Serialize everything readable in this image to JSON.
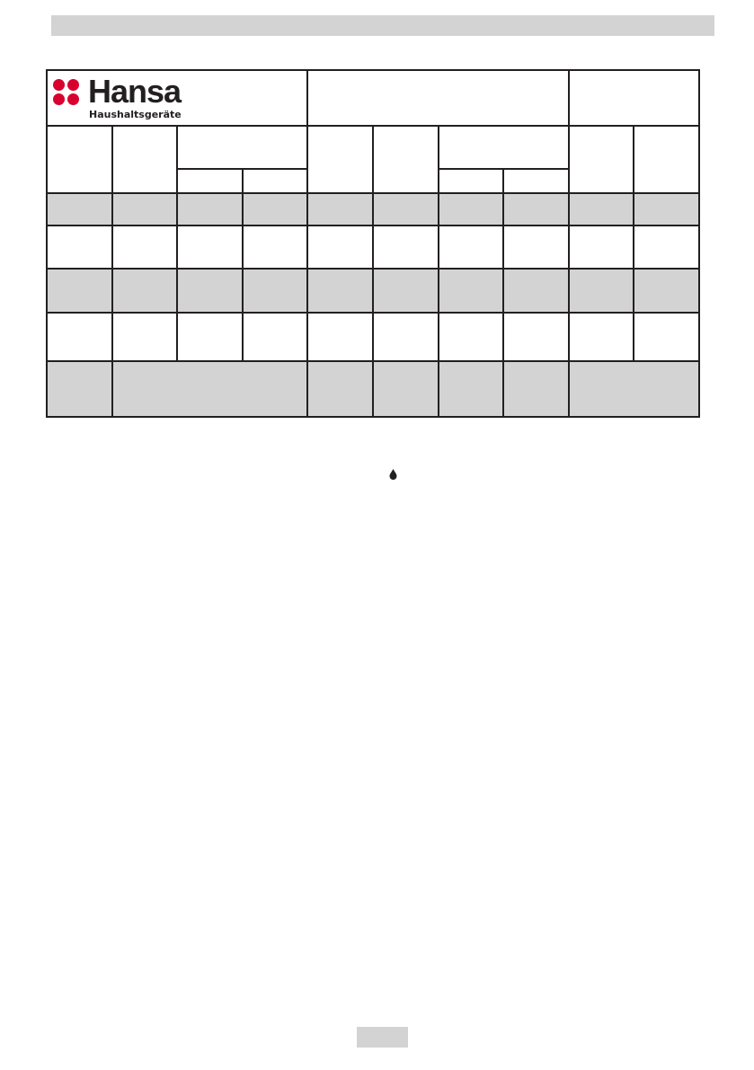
{
  "logo": {
    "brand": "Hansa",
    "tagline": "Haushaltsgeräte",
    "color": "#d7002f"
  },
  "icons": {
    "drop": "water-drop-icon"
  }
}
